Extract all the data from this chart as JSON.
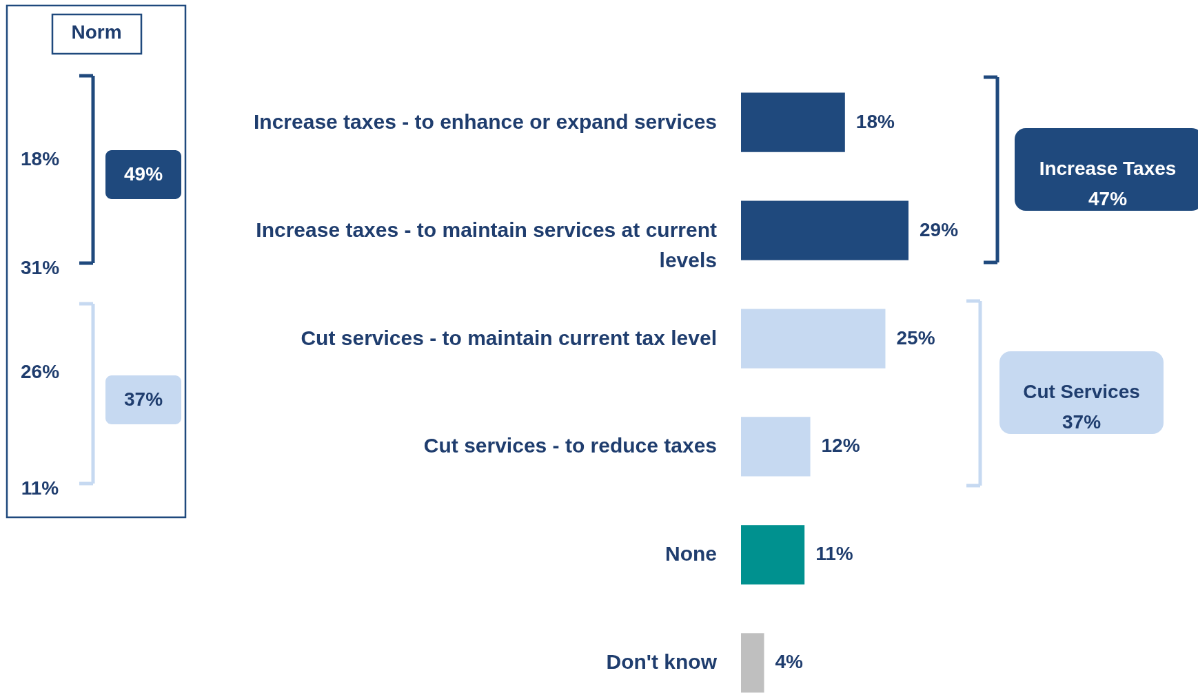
{
  "chart_data": {
    "type": "bar",
    "orientation": "horizontal",
    "categories": [
      "Increase taxes - to enhance or expand services",
      "Increase taxes - to maintain services at current levels",
      "Cut services - to maintain current tax level",
      "Cut services - to reduce taxes",
      "None",
      "Don't know"
    ],
    "values": [
      18,
      29,
      25,
      12,
      11,
      4
    ],
    "colors": [
      "#1f497d",
      "#1f497d",
      "#c6d9f1",
      "#c6d9f1",
      "#00918f",
      "#bfbfbf"
    ],
    "value_labels": [
      "18%",
      "29%",
      "25%",
      "12%",
      "11%",
      "4%"
    ],
    "annotations": [
      "Norm",
      "18%",
      "31%",
      "26%",
      "11%",
      "49%",
      "37%",
      "Increase Taxes\n47%",
      "Cut Services\n37%"
    ]
  }
}
